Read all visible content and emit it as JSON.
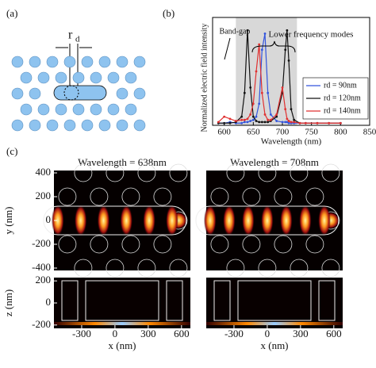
{
  "panel_labels": [
    "(a)",
    "(b)",
    "(c)"
  ],
  "panel_a": {
    "rd_label": "r",
    "rd_sub": "d"
  },
  "chart_data": {
    "type": "line",
    "xlabel": "Wavelength (nm)",
    "ylabel": "Normalized electric field intensity",
    "annotations": [
      "Band-gap",
      "Lower frequency modes"
    ],
    "band_gap": [
      620,
      725
    ],
    "x": [
      590,
      600,
      610,
      620,
      630,
      635,
      640,
      645,
      650,
      655,
      660,
      665,
      670,
      675,
      680,
      690,
      700,
      705,
      708,
      711,
      715,
      720,
      730,
      740,
      760,
      780,
      800
    ],
    "series": [
      {
        "name": "rd = 90nm",
        "color": "#3355dd",
        "values": [
          0.02,
          0.02,
          0.03,
          0.02,
          0.02,
          0.03,
          0.03,
          0.04,
          0.05,
          0.08,
          0.2,
          0.7,
          0.85,
          0.3,
          0.1,
          0.04,
          0.03,
          0.03,
          0.03,
          0.02,
          0.02,
          0.02,
          0.02,
          0.02,
          0.02,
          0.02,
          0.02
        ]
      },
      {
        "name": "rd = 120nm",
        "color": "#111111",
        "values": [
          0.02,
          0.02,
          0.02,
          0.03,
          0.08,
          0.3,
          0.88,
          0.35,
          0.08,
          0.04,
          0.03,
          0.03,
          0.03,
          0.03,
          0.04,
          0.08,
          0.3,
          0.7,
          0.88,
          0.6,
          0.15,
          0.05,
          0.02,
          0.02,
          0.02,
          0.02,
          0.02
        ]
      },
      {
        "name": "rd = 140nm",
        "color": "#e03030",
        "values": [
          0.03,
          0.08,
          0.06,
          0.04,
          0.05,
          0.05,
          0.06,
          0.1,
          0.2,
          0.5,
          0.75,
          0.3,
          0.1,
          0.05,
          0.05,
          0.1,
          0.35,
          0.15,
          0.06,
          0.04,
          0.03,
          0.03,
          0.02,
          0.02,
          0.02,
          0.02,
          0.02
        ]
      }
    ],
    "xlim": [
      580,
      850
    ],
    "xticks": [
      600,
      650,
      700,
      750,
      800,
      850
    ],
    "ylim": [
      0,
      1
    ],
    "legend": "right"
  },
  "field_maps": {
    "titles": [
      "Wavelength = 638nm",
      "Wavelength = 708nm"
    ],
    "ylabel": "y (nm)",
    "zlabel": "z (nm)",
    "xlabel": "x (nm)",
    "xlim": [
      -550,
      680
    ],
    "xticks": [
      -300,
      0,
      300,
      600
    ],
    "ylim": [
      -420,
      420
    ],
    "yticks": [
      400,
      200,
      0,
      -200,
      -400
    ],
    "zlim": [
      -230,
      230
    ],
    "zticks": [
      200,
      0,
      -200
    ]
  }
}
